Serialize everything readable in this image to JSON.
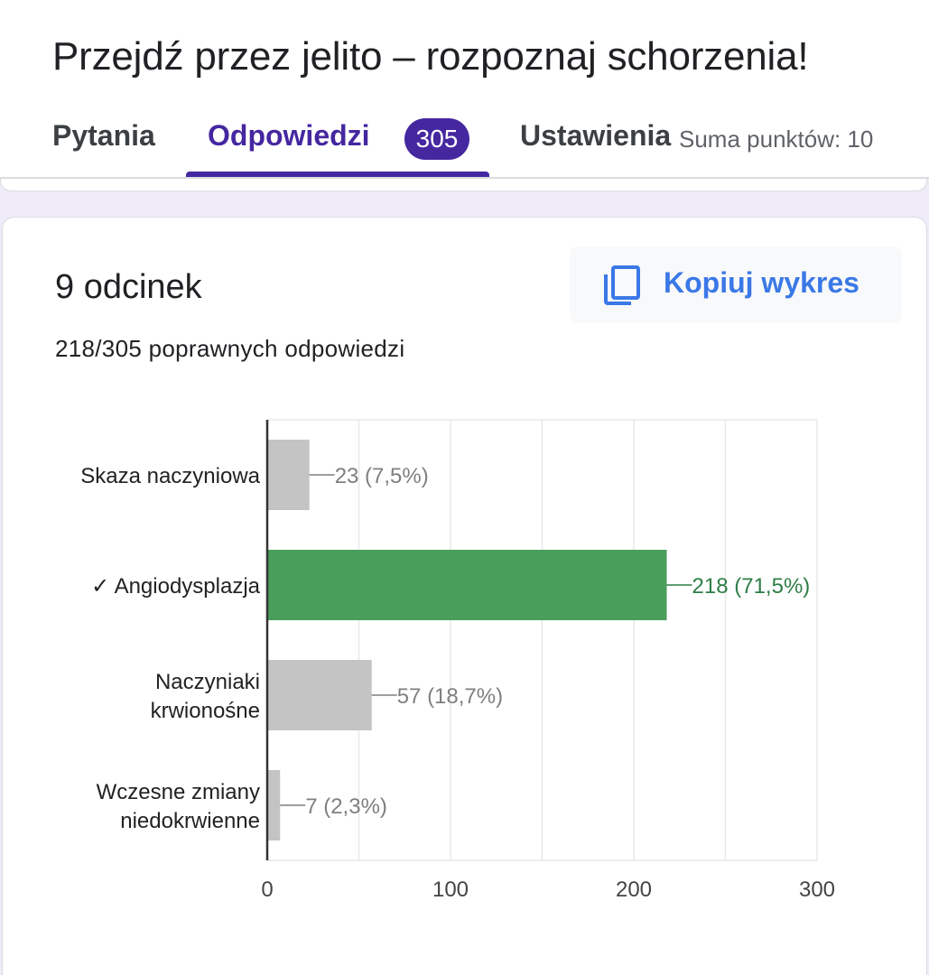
{
  "form": {
    "title": "Przejdź przez jelito – rozpoznaj schorzenia!"
  },
  "tabs": [
    {
      "label": "Pytania",
      "active": false
    },
    {
      "label": "Odpowiedzi",
      "active": true,
      "badge": "305"
    },
    {
      "label": "Ustawienia",
      "active": false
    }
  ],
  "total_points": "Suma punktów: 10",
  "question": {
    "title": "9 odcinek",
    "correct_summary": "218/305 poprawnych odpowiedzi",
    "copy_chart_label": "Kopiuj wykres"
  },
  "colors": {
    "accent": "#4527a0",
    "correct_bar": "#4a9e5c",
    "incorrect_bar": "#c4c4c4",
    "correct_text": "#2e7d46",
    "incorrect_text": "#7f7f7f",
    "link_blue": "#3b78e7"
  },
  "icons": {
    "copy": "copy-icon"
  },
  "chart_data": {
    "type": "bar",
    "orientation": "horizontal",
    "categories": [
      [
        "Skaza naczyniowa"
      ],
      [
        "✓ Angiodysplazja"
      ],
      [
        "Naczyniaki",
        "krwionośne"
      ],
      [
        "Wczesne zmiany",
        "niedokrwienne"
      ]
    ],
    "values": [
      23,
      218,
      57,
      7
    ],
    "value_labels": [
      "23 (7,5%)",
      "218 (71,5%)",
      "57 (18,7%)",
      "7 (2,3%)"
    ],
    "correct": [
      false,
      true,
      false,
      false
    ],
    "xlim": [
      0,
      300
    ],
    "xticks": [
      0,
      100,
      200,
      300
    ],
    "xtick_labels": [
      "0",
      "100",
      "200",
      "300"
    ],
    "grid": true
  }
}
